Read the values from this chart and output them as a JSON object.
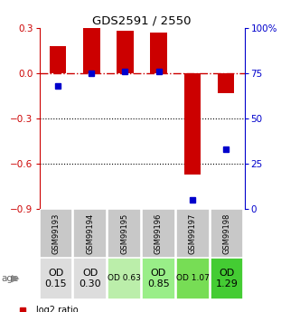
{
  "title": "GDS2591 / 2550",
  "samples": [
    "GSM99193",
    "GSM99194",
    "GSM99195",
    "GSM99196",
    "GSM99197",
    "GSM99198"
  ],
  "log2_ratio": [
    0.18,
    0.3,
    0.28,
    0.27,
    -0.67,
    -0.13
  ],
  "percentile_rank": [
    68,
    75,
    76,
    76,
    5,
    33
  ],
  "ylim_left": [
    -0.9,
    0.3
  ],
  "ylim_right": [
    0,
    100
  ],
  "yticks_left": [
    0.3,
    0.0,
    -0.3,
    -0.6,
    -0.9
  ],
  "yticks_right": [
    100,
    75,
    50,
    25,
    0
  ],
  "bar_color": "#cc0000",
  "dot_color": "#0000cc",
  "hline_color": "#cc0000",
  "grid_color": "#000000",
  "age_labels": [
    "OD\n0.15",
    "OD\n0.30",
    "OD 0.63",
    "OD\n0.85",
    "OD 1.07",
    "OD\n1.29"
  ],
  "age_bg": [
    "#dddddd",
    "#dddddd",
    "#bbeeaa",
    "#99ee88",
    "#77dd55",
    "#44cc33"
  ],
  "age_fontsize": [
    8,
    8,
    6.5,
    8,
    6.5,
    8
  ],
  "sample_bg": "#c8c8c8",
  "background_color": "#ffffff"
}
